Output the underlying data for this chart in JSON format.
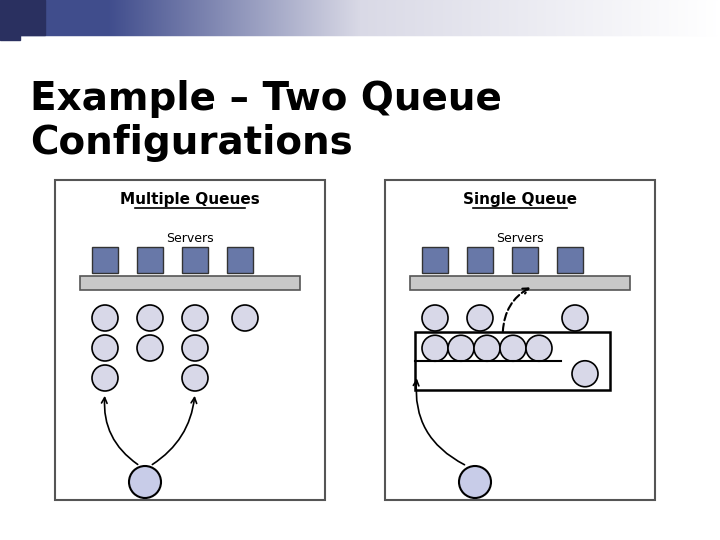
{
  "title": "Example – Two Queue\nConfigurations",
  "title_fontsize": 28,
  "title_fontweight": "bold",
  "bg_color": "#ffffff",
  "left_box_title": "Multiple Queues",
  "right_box_title": "Single Queue",
  "servers_label": "Servers",
  "server_color": "#6878a8",
  "circle_facecolor": "#d8d8e8",
  "circle_edgecolor": "#000000",
  "bar_color": "#c8c8c8",
  "box_edgecolor": "#555555",
  "arrow_color": "#000000"
}
